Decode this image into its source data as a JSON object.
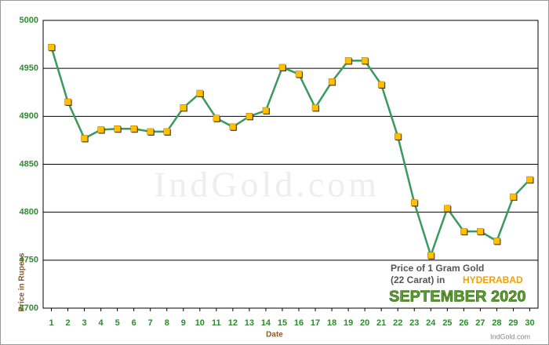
{
  "chart_data": {
    "type": "line",
    "title_lines": [
      "Price of 1 Gram Gold",
      "(22 Carat) in"
    ],
    "city": "HYDERABAD",
    "period": "SEPTEMBER 2020",
    "watermark": "IndGold.com",
    "source": "IndGold.com",
    "y_label": "Price in Rupees",
    "x_label": "Date",
    "x": [
      1,
      2,
      3,
      4,
      5,
      6,
      7,
      8,
      9,
      10,
      11,
      12,
      13,
      14,
      15,
      16,
      17,
      18,
      19,
      20,
      21,
      22,
      23,
      24,
      25,
      26,
      27,
      28,
      29,
      30
    ],
    "series": [
      {
        "name": "Price",
        "color": "#3a9a5e",
        "marker_color": "#ffc000",
        "values": [
          4972,
          4915,
          4877,
          4886,
          4887,
          4887,
          4884,
          4884,
          4909,
          4924,
          4898,
          4889,
          4900,
          4906,
          4951,
          4944,
          4909,
          4936,
          4958,
          4958,
          4933,
          4879,
          4810,
          4755,
          4804,
          4780,
          4780,
          4770,
          4816,
          4834
        ]
      }
    ],
    "xlim": [
      0.5,
      30.5
    ],
    "xticks": [
      1,
      2,
      3,
      4,
      5,
      6,
      7,
      8,
      9,
      10,
      11,
      12,
      13,
      14,
      15,
      16,
      17,
      18,
      19,
      20,
      21,
      22,
      23,
      24,
      25,
      26,
      27,
      28,
      29,
      30
    ],
    "ylim": [
      4700,
      5000
    ],
    "yticks": [
      4700,
      4750,
      4800,
      4850,
      4900,
      4950,
      5000
    ],
    "grid": true
  }
}
